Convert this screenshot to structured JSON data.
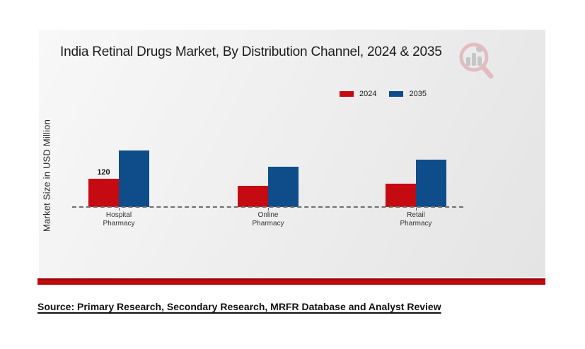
{
  "chart_data": {
    "type": "bar",
    "title": "India Retinal Drugs Market, By Distribution Channel, 2024 & 2035",
    "xlabel": "",
    "ylabel": "Market Size in USD Million",
    "categories": [
      "Hospital Pharmacy",
      "Online Pharmacy",
      "Retail Pharmacy"
    ],
    "series": [
      {
        "name": "2024",
        "color": "#c50a11",
        "values": [
          120,
          90,
          100
        ]
      },
      {
        "name": "2035",
        "color": "#0e4c8a",
        "values": [
          240,
          170,
          200
        ]
      }
    ],
    "data_labels": [
      {
        "series": "2024",
        "category": "Hospital Pharmacy",
        "text": "120"
      }
    ],
    "ylim": [
      0,
      250
    ],
    "grid": "dashed-baseline-only",
    "legend_position": "top-right"
  },
  "footer": {
    "source_text": "Source: Primary Research, Secondary Research, MRFR Database and Analyst Review"
  },
  "colors": {
    "accent_red": "#c50a11",
    "accent_blue": "#0e4c8a",
    "panel_background": "#ededed",
    "bottom_bar_red": "#c00a0e",
    "dashed_line": "#707070"
  }
}
